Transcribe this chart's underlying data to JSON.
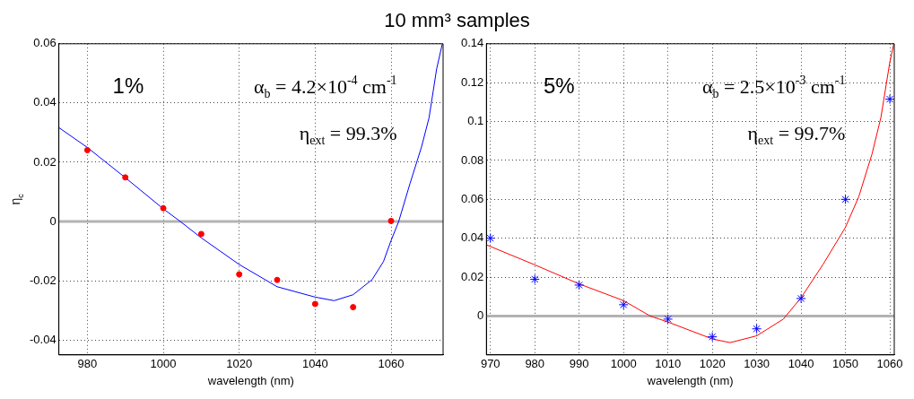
{
  "chart_data": [
    {
      "type": "line",
      "title": "10 mm³ samples",
      "xlabel": "wavelength (nm)",
      "ylabel": "η$_{c}$",
      "xlim": [
        972.5,
        1073.7
      ],
      "xticks": [
        980,
        1000,
        1020,
        1040,
        1060
      ],
      "ylim": [
        -0.045,
        0.06
      ],
      "yticks": [
        -0.04,
        -0.02,
        0,
        0.02,
        0.04,
        0.06
      ],
      "grid": true,
      "annotations": [
        "1%",
        "α$_{b}$ = 4.2×10$^{-4}$ cm$^{-1}$",
        "η$_{ext}$ = 99.3%"
      ],
      "ref_lines": [
        {
          "axis": "y",
          "value": 0,
          "color": "#b3b3b3"
        }
      ],
      "series": [
        {
          "type": "line",
          "color": "#0000ff",
          "marker": "none",
          "line_style": "solid",
          "x": [
            972.5,
            980,
            990,
            1000,
            1004.5,
            1010,
            1020,
            1030,
            1040,
            1045,
            1050,
            1055,
            1058,
            1060,
            1062,
            1065,
            1068,
            1070,
            1072,
            1073.5
          ],
          "values": [
            0.0317,
            0.025,
            0.0148,
            0.0043,
            0,
            -0.0055,
            -0.0145,
            -0.022,
            -0.0255,
            -0.0267,
            -0.0247,
            -0.0196,
            -0.0135,
            -0.0064,
            0,
            0.0129,
            0.0251,
            0.035,
            0.0515,
            0.06
          ]
        },
        {
          "type": "scatter",
          "color": "#ff0000",
          "marker": "circle",
          "x": [
            980,
            990,
            1000,
            1010,
            1020,
            1030,
            1040,
            1050,
            1060
          ],
          "values": [
            0.0241,
            0.0149,
            0.0045,
            -0.0042,
            -0.0178,
            -0.0197,
            -0.0278,
            -0.0289,
            0.0002
          ]
        }
      ]
    },
    {
      "type": "line",
      "xlabel": "wavelength (nm)",
      "xlim": [
        969.1,
        1061
      ],
      "xticks": [
        970,
        980,
        990,
        1000,
        1010,
        1020,
        1030,
        1040,
        1050,
        1060
      ],
      "ylim": [
        -0.02,
        0.14
      ],
      "yticks": [
        0,
        0.02,
        0.04,
        0.06,
        0.08,
        0.1,
        0.12,
        0.14
      ],
      "grid": true,
      "annotations": [
        "5%",
        "α$_{b}$ = 2.5×10$^{-3}$ cm$^{-1}$",
        "η$_{ext}$ = 99.7%"
      ],
      "ref_lines": [
        {
          "axis": "y",
          "value": 0,
          "color": "#b3b3b3"
        }
      ],
      "series": [
        {
          "type": "line",
          "color": "#ff0000",
          "marker": "none",
          "line_style": "solid",
          "x": [
            969.1,
            980,
            990,
            1000,
            1006,
            1010,
            1020,
            1024,
            1030,
            1036,
            1040,
            1045,
            1050,
            1053,
            1056,
            1058,
            1060,
            1060.9
          ],
          "values": [
            0.0366,
            0.0263,
            0.0165,
            0.0079,
            0,
            -0.0031,
            -0.0118,
            -0.0137,
            -0.0102,
            -0.0016,
            0.0094,
            0.0267,
            0.0456,
            0.0613,
            0.0834,
            0.1022,
            0.1306,
            0.14
          ]
        },
        {
          "type": "scatter",
          "color": "#0000ff",
          "marker": "cross",
          "x": [
            970,
            980,
            990,
            1000,
            1010,
            1020,
            1030,
            1040,
            1050,
            1060
          ],
          "values": [
            0.04,
            0.0189,
            0.0159,
            0.0058,
            -0.0016,
            -0.0107,
            -0.0066,
            0.009,
            0.06,
            0.1115
          ]
        }
      ]
    }
  ]
}
